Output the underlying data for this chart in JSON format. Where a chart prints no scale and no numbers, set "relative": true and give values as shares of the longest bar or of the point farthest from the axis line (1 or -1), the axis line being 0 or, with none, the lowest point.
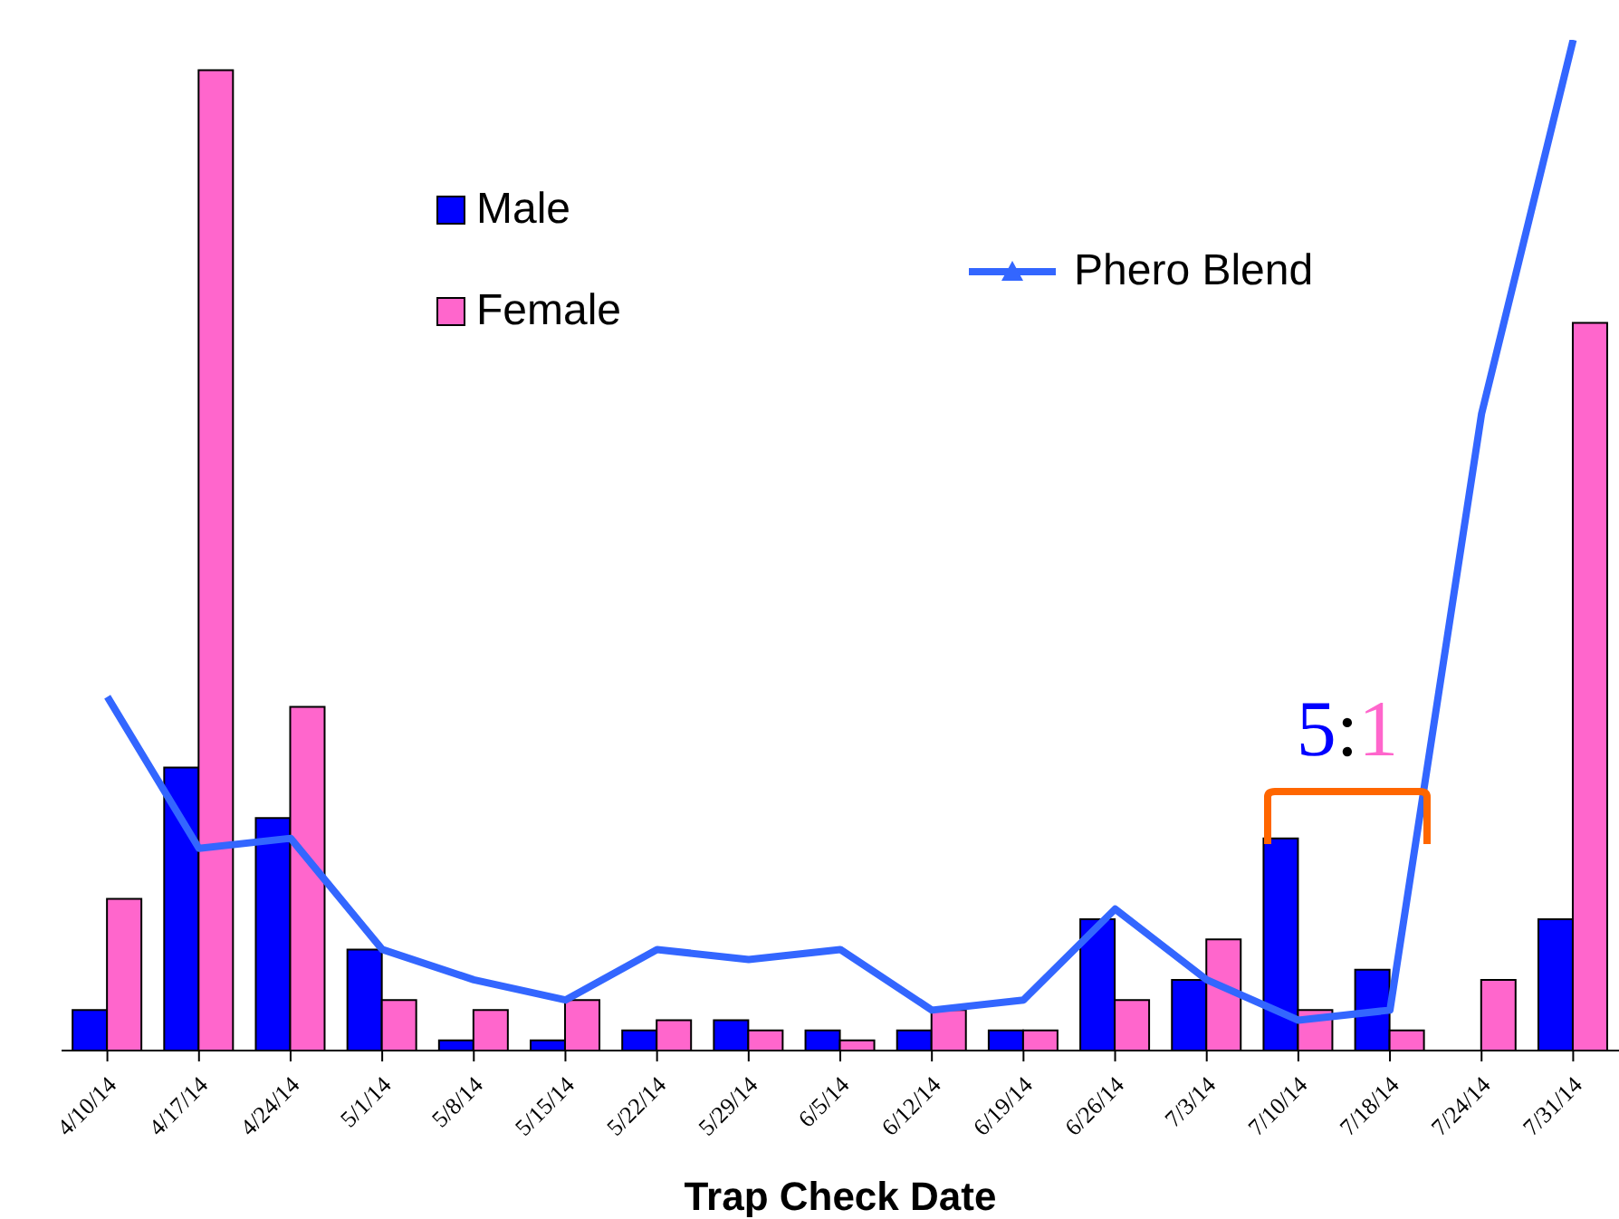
{
  "chart_data": {
    "type": "bar",
    "relative": true,
    "xlabel": "Trap Check Date",
    "legend": "top",
    "categories": [
      "4/10/14",
      "4/17/14",
      "4/24/14",
      "5/1/14",
      "5/8/14",
      "5/15/14",
      "5/22/14",
      "5/29/14",
      "6/5/14",
      "6/12/14",
      "6/19/14",
      "6/26/14",
      "7/3/14",
      "7/10/14",
      "7/18/14",
      "7/24/14",
      "7/31/14"
    ],
    "series": [
      {
        "name": "Male",
        "color": "#0000ff",
        "values": [
          0.04,
          0.28,
          0.23,
          0.1,
          0.01,
          0.01,
          0.02,
          0.03,
          0.02,
          0.02,
          0.02,
          0.13,
          0.07,
          0.21,
          0.08,
          0,
          0.13
        ]
      },
      {
        "name": "Female",
        "color": "#ff66cc",
        "values": [
          0.15,
          0.97,
          0.34,
          0.05,
          0.04,
          0.05,
          0.03,
          0.02,
          0.01,
          0.04,
          0.02,
          0.05,
          0.11,
          0.04,
          0.02,
          0.07,
          0.72
        ]
      },
      {
        "name": "Phero Blend",
        "type": "line",
        "color": "#3366ff",
        "values": [
          0.35,
          0.2,
          0.21,
          0.1,
          0.07,
          0.05,
          0.1,
          0.09,
          0.1,
          0.04,
          0.05,
          0.14,
          0.07,
          0.03,
          0.04,
          0.63,
          1
        ]
      }
    ],
    "annotations": [
      "5:1"
    ]
  }
}
